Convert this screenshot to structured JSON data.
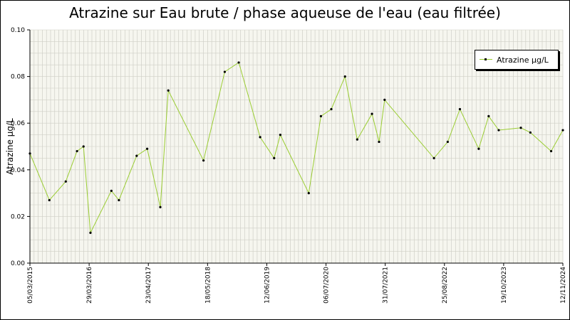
{
  "chart_data": {
    "type": "line",
    "title": "Atrazine sur Eau brute / phase aqueuse de l'eau (eau filtrée)",
    "xlabel": "",
    "ylabel": "Atrazine µg/L",
    "ylim": [
      0,
      0.1
    ],
    "yticks": [
      "0.00",
      "0.02",
      "0.04",
      "0.06",
      "0.08",
      "0.10"
    ],
    "xlim": [
      "2015-03-05",
      "2024-11-12"
    ],
    "xtick_labels": [
      "05/03/2015",
      "29/03/2016",
      "23/04/2017",
      "18/05/2018",
      "12/06/2019",
      "06/07/2020",
      "31/07/2021",
      "25/08/2022",
      "19/10/2023",
      "12/11/2024"
    ],
    "grid": true,
    "legend_position": "top-right",
    "line_color": "#9acd32",
    "marker_color": "#000000",
    "plot_background": "#f6f6ef",
    "series": [
      {
        "name": "Atrazine µg/L",
        "x": [
          "2015-03-05",
          "2015-07-12",
          "2015-10-29",
          "2016-01-12",
          "2016-02-24",
          "2016-04-10",
          "2016-08-27",
          "2016-10-16",
          "2017-02-11",
          "2017-04-22",
          "2017-07-18",
          "2017-09-09",
          "2018-05-01",
          "2018-09-19",
          "2018-12-21",
          "2019-05-12",
          "2019-08-13",
          "2019-09-23",
          "2020-03-30",
          "2020-06-19",
          "2020-08-27",
          "2020-11-26",
          "2021-02-15",
          "2021-05-24",
          "2021-07-10",
          "2021-08-16",
          "2022-07-10",
          "2022-10-09",
          "2022-12-29",
          "2023-05-03",
          "2023-07-08",
          "2023-09-13",
          "2024-02-07",
          "2024-04-10",
          "2024-08-26",
          "2024-11-12"
        ],
        "values": [
          0.047,
          0.027,
          0.035,
          0.048,
          0.05,
          0.013,
          0.031,
          0.027,
          0.046,
          0.049,
          0.024,
          0.074,
          0.044,
          0.082,
          0.086,
          0.054,
          0.045,
          0.055,
          0.03,
          0.063,
          0.066,
          0.08,
          0.053,
          0.064,
          0.052,
          0.07,
          0.045,
          0.052,
          0.066,
          0.049,
          0.063,
          0.057,
          0.058,
          0.056,
          0.048,
          0.057
        ]
      }
    ]
  }
}
